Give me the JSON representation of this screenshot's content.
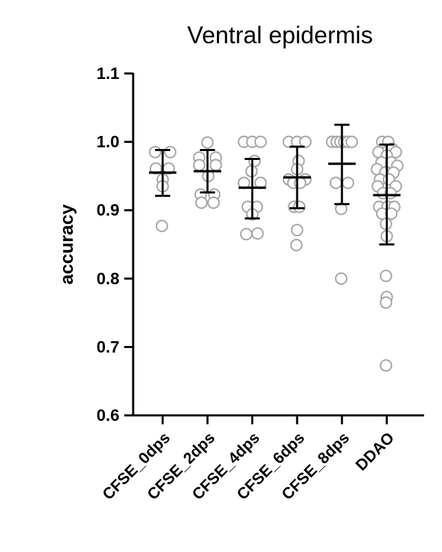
{
  "chart_data": {
    "type": "scatter",
    "title": "Ventral epidermis",
    "xlabel": "",
    "ylabel": "accuracy",
    "ylim": [
      0.6,
      1.1
    ],
    "yticks": [
      "0.6",
      "0.7",
      "0.8",
      "0.9",
      "1.0",
      "1.1"
    ],
    "categories": [
      "CFSE_0dps",
      "CFSE_2dps",
      "CFSE_4dps",
      "CFSE_6dps",
      "CFSE_8dps",
      "DDAO"
    ],
    "grid": false,
    "legend": "none",
    "marker_color": "#a8a8a8",
    "errorbar_color": "#000000",
    "groups": [
      {
        "category": "CFSE_0dps",
        "mean": 0.955,
        "sd_low": 0.921,
        "sd_high": 0.988,
        "points": [
          {
            "offset": -0.5,
            "y": 0.985
          },
          {
            "offset": 0.5,
            "y": 0.985
          },
          {
            "offset": -0.45,
            "y": 0.961
          },
          {
            "offset": 0.4,
            "y": 0.961
          },
          {
            "offset": 0.0,
            "y": 0.945
          },
          {
            "offset": 0.0,
            "y": 0.935
          },
          {
            "offset": -0.05,
            "y": 0.877
          }
        ]
      },
      {
        "category": "CFSE_2dps",
        "mean": 0.957,
        "sd_low": 0.926,
        "sd_high": 0.988,
        "points": [
          {
            "offset": 0.0,
            "y": 0.999
          },
          {
            "offset": -0.55,
            "y": 0.977
          },
          {
            "offset": 0.55,
            "y": 0.977
          },
          {
            "offset": -0.55,
            "y": 0.966
          },
          {
            "offset": 0.55,
            "y": 0.966
          },
          {
            "offset": 0.05,
            "y": 0.95
          },
          {
            "offset": -0.45,
            "y": 0.923
          },
          {
            "offset": 0.45,
            "y": 0.923
          },
          {
            "offset": -0.4,
            "y": 0.911
          },
          {
            "offset": 0.4,
            "y": 0.911
          }
        ]
      },
      {
        "category": "CFSE_4dps",
        "mean": 0.933,
        "sd_low": 0.888,
        "sd_high": 0.975,
        "points": [
          {
            "offset": -0.55,
            "y": 1.0
          },
          {
            "offset": 0.0,
            "y": 1.0
          },
          {
            "offset": 0.55,
            "y": 1.0
          },
          {
            "offset": 0.15,
            "y": 0.972
          },
          {
            "offset": -0.05,
            "y": 0.957
          },
          {
            "offset": -0.55,
            "y": 0.94
          },
          {
            "offset": 0.55,
            "y": 0.94
          },
          {
            "offset": -0.3,
            "y": 0.905
          },
          {
            "offset": 0.3,
            "y": 0.905
          },
          {
            "offset": 0.0,
            "y": 0.894
          },
          {
            "offset": -0.4,
            "y": 0.865
          },
          {
            "offset": 0.35,
            "y": 0.866
          }
        ]
      },
      {
        "category": "CFSE_6dps",
        "mean": 0.948,
        "sd_low": 0.903,
        "sd_high": 0.993,
        "points": [
          {
            "offset": -0.55,
            "y": 1.0
          },
          {
            "offset": 0.0,
            "y": 1.0
          },
          {
            "offset": 0.55,
            "y": 1.0
          },
          {
            "offset": 0.1,
            "y": 0.972
          },
          {
            "offset": 0.0,
            "y": 0.96
          },
          {
            "offset": -0.55,
            "y": 0.945
          },
          {
            "offset": 0.55,
            "y": 0.945
          },
          {
            "offset": -0.25,
            "y": 0.94
          },
          {
            "offset": 0.2,
            "y": 0.94
          },
          {
            "offset": -0.2,
            "y": 0.905
          },
          {
            "offset": 0.15,
            "y": 0.905
          },
          {
            "offset": 0.0,
            "y": 0.871
          },
          {
            "offset": -0.05,
            "y": 0.849
          }
        ]
      },
      {
        "category": "CFSE_8dps",
        "mean": 0.968,
        "sd_low": 0.909,
        "sd_high": 1.025,
        "points": [
          {
            "offset": -0.65,
            "y": 1.0
          },
          {
            "offset": -0.35,
            "y": 1.0
          },
          {
            "offset": -0.1,
            "y": 1.0
          },
          {
            "offset": 0.15,
            "y": 1.0
          },
          {
            "offset": 0.4,
            "y": 1.0
          },
          {
            "offset": 0.65,
            "y": 1.0
          },
          {
            "offset": -0.4,
            "y": 0.94
          },
          {
            "offset": 0.4,
            "y": 0.94
          },
          {
            "offset": -0.05,
            "y": 0.902
          },
          {
            "offset": -0.05,
            "y": 0.8
          }
        ]
      },
      {
        "category": "DDAO",
        "mean": 0.922,
        "sd_low": 0.85,
        "sd_high": 0.996,
        "points": [
          {
            "offset": -0.3,
            "y": 1.0
          },
          {
            "offset": 0.1,
            "y": 1.0
          },
          {
            "offset": 0.35,
            "y": 0.99
          },
          {
            "offset": -0.55,
            "y": 0.985
          },
          {
            "offset": 0.6,
            "y": 0.985
          },
          {
            "offset": 0.0,
            "y": 0.98
          },
          {
            "offset": -0.35,
            "y": 0.97
          },
          {
            "offset": 0.3,
            "y": 0.97
          },
          {
            "offset": -0.65,
            "y": 0.96
          },
          {
            "offset": 0.7,
            "y": 0.965
          },
          {
            "offset": -0.1,
            "y": 0.955
          },
          {
            "offset": 0.45,
            "y": 0.955
          },
          {
            "offset": -0.45,
            "y": 0.945
          },
          {
            "offset": 0.15,
            "y": 0.945
          },
          {
            "offset": -0.6,
            "y": 0.935
          },
          {
            "offset": 0.6,
            "y": 0.935
          },
          {
            "offset": -0.25,
            "y": 0.925
          },
          {
            "offset": 0.25,
            "y": 0.925
          },
          {
            "offset": -0.5,
            "y": 0.905
          },
          {
            "offset": 0.05,
            "y": 0.905
          },
          {
            "offset": 0.5,
            "y": 0.905
          },
          {
            "offset": -0.3,
            "y": 0.895
          },
          {
            "offset": 0.3,
            "y": 0.895
          },
          {
            "offset": -0.05,
            "y": 0.88
          },
          {
            "offset": 0.0,
            "y": 0.862
          },
          {
            "offset": -0.05,
            "y": 0.804
          },
          {
            "offset": 0.0,
            "y": 0.773
          },
          {
            "offset": -0.05,
            "y": 0.765
          },
          {
            "offset": -0.05,
            "y": 0.673
          }
        ]
      }
    ]
  }
}
